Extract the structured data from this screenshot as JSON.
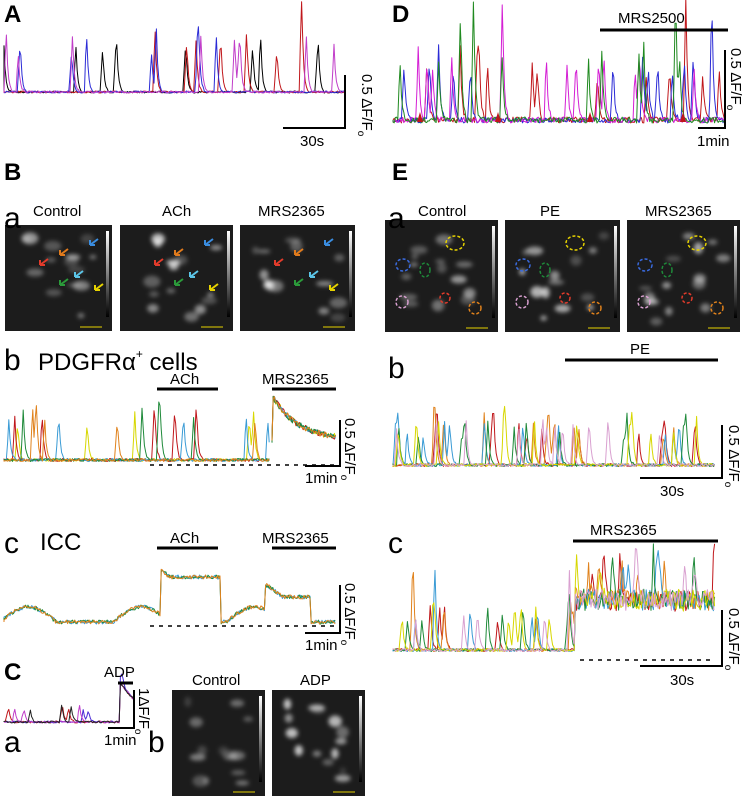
{
  "panels": {
    "A": {
      "label": "A",
      "scale_y": "0.5 ΔF/F",
      "scale_y_sub": "o",
      "scale_x": "30s"
    },
    "D": {
      "label": "D",
      "drug": "MRS2500",
      "scale_y": "0.5 ΔF/F",
      "scale_y_sub": "o",
      "scale_x": "1min"
    },
    "B": {
      "label": "B",
      "a": {
        "label": "a",
        "images": [
          "Control",
          "ACh",
          "MRS2365"
        ],
        "scale": "30.0um"
      },
      "b": {
        "label": "b",
        "title": "PDGFRα",
        "title_sup": "+",
        "title_rest": " cells",
        "drugs": [
          "ACh",
          "MRS2365"
        ],
        "scale_y": "0.5 ΔF/F",
        "scale_y_sub": "o",
        "scale_x": "1min"
      },
      "c": {
        "label": "c",
        "title": "ICC",
        "drugs": [
          "ACh",
          "MRS2365"
        ],
        "scale_y": "0.5 ΔF/F",
        "scale_y_sub": "o",
        "scale_x": "1min"
      }
    },
    "C": {
      "label": "C",
      "a": {
        "label": "a",
        "drug": "ADP",
        "scale_y": "1ΔF/F",
        "scale_y_sub": "o",
        "scale_x": "1min"
      },
      "b": {
        "label": "b",
        "images": [
          "Control",
          "ADP"
        ],
        "scale": "30.0um"
      }
    },
    "E": {
      "label": "E",
      "a": {
        "label": "a",
        "images": [
          "Control",
          "PE",
          "MRS2365"
        ],
        "scale": "30.0um"
      },
      "b": {
        "label": "b",
        "drug": "PE",
        "scale_y": "0.5 ΔF/F",
        "scale_y_sub": "o",
        "scale_x": "30s"
      },
      "c": {
        "label": "c",
        "drug": "MRS2365",
        "scale_y": "0.5 ΔF/F",
        "scale_y_sub": "o",
        "scale_x": "30s"
      }
    }
  }
}
